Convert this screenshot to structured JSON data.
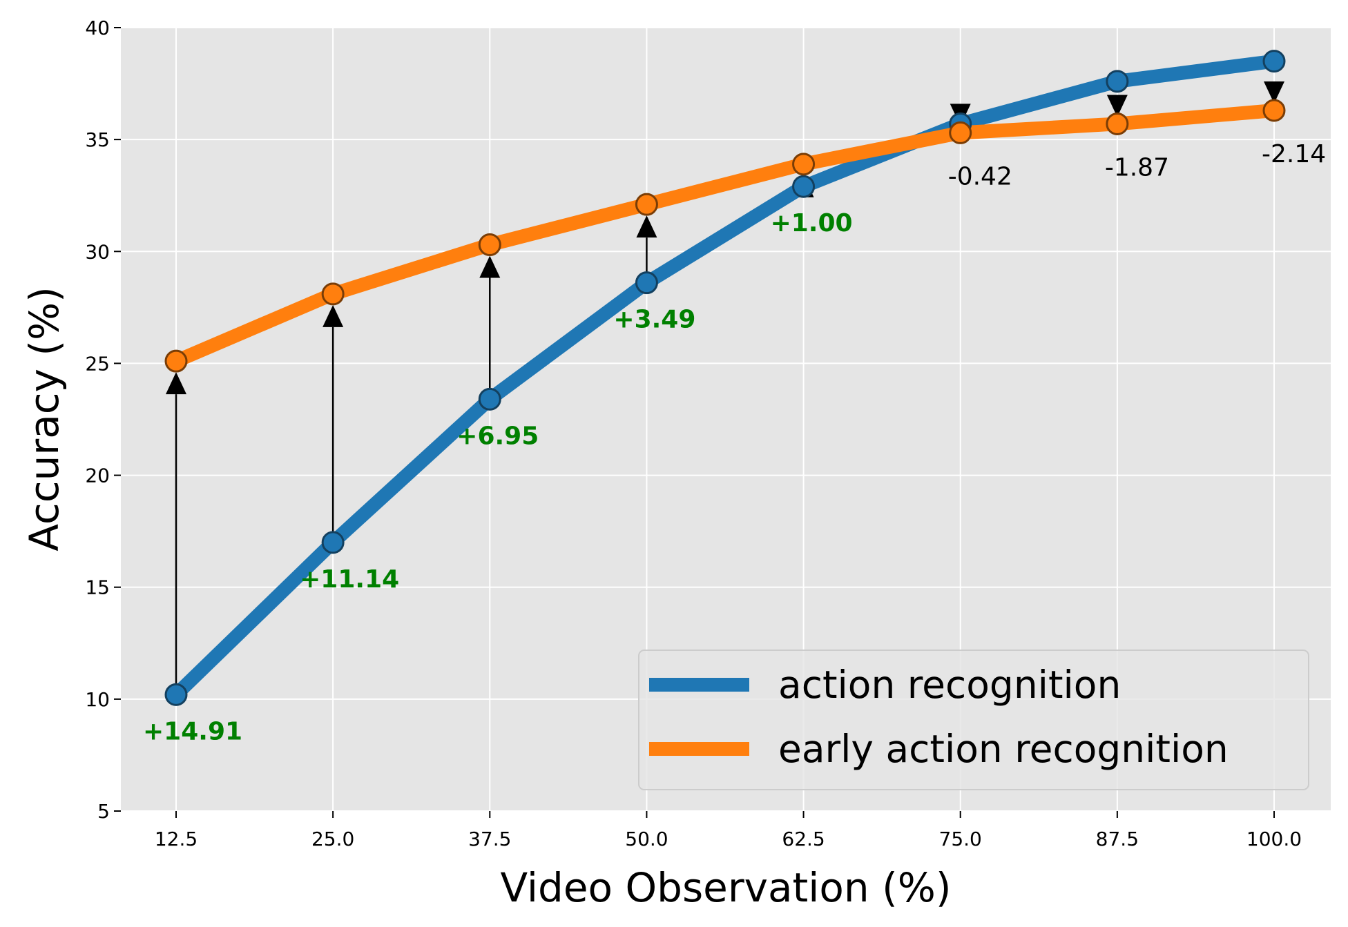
{
  "chart_data": {
    "type": "line",
    "xlabel": "Video Observation (%)",
    "ylabel": "Accuracy (%)",
    "x": [
      12.5,
      25.0,
      37.5,
      50.0,
      62.5,
      75.0,
      87.5,
      100.0
    ],
    "x_tick_labels": [
      "12.5",
      "25.0",
      "37.5",
      "50.0",
      "62.5",
      "75.0",
      "87.5",
      "100.0"
    ],
    "y_ticks": [
      5,
      10,
      15,
      20,
      25,
      30,
      35,
      40
    ],
    "y_tick_labels": [
      "5",
      "10",
      "15",
      "20",
      "25",
      "30",
      "35",
      "40"
    ],
    "ylim": [
      5,
      40
    ],
    "grid": true,
    "legend_position": "lower-right",
    "series": [
      {
        "name": "action recognition",
        "color": "#1f77b4",
        "values": [
          10.2,
          17.0,
          23.4,
          28.6,
          32.9,
          35.7,
          37.6,
          38.5
        ]
      },
      {
        "name": "early action recognition",
        "color": "#ff7f0e",
        "values": [
          25.1,
          28.1,
          30.3,
          32.1,
          33.9,
          35.3,
          35.7,
          36.3
        ]
      }
    ],
    "annotations": [
      {
        "x": 12.5,
        "text": "+14.91",
        "direction": "up"
      },
      {
        "x": 25.0,
        "text": "+11.14",
        "direction": "up"
      },
      {
        "x": 37.5,
        "text": "+6.95",
        "direction": "up"
      },
      {
        "x": 50.0,
        "text": "+3.49",
        "direction": "up"
      },
      {
        "x": 62.5,
        "text": "+1.00",
        "direction": "up"
      },
      {
        "x": 75.0,
        "text": "-0.42",
        "direction": "down"
      },
      {
        "x": 87.5,
        "text": "-1.87",
        "direction": "down"
      },
      {
        "x": 100.0,
        "text": "-2.14",
        "direction": "down"
      }
    ],
    "colors": {
      "plot_background": "#e5e5e5",
      "grid": "#ffffff",
      "positive_annotation": "#008000",
      "negative_annotation": "#000000"
    }
  }
}
